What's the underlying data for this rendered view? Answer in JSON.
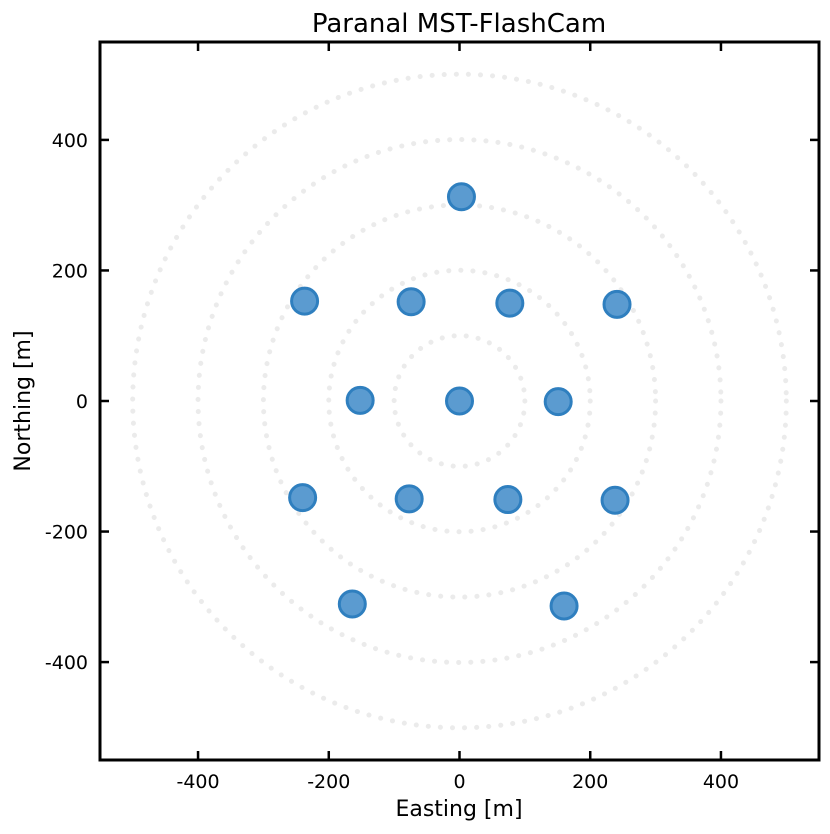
{
  "chart_data": {
    "type": "scatter",
    "title": "Paranal MST-FlashCam",
    "xlabel": "Easting [m]",
    "ylabel": "Northing [m]",
    "xlim": [
      -550,
      550
    ],
    "ylim": [
      -550,
      550
    ],
    "xticks": [
      -400,
      -200,
      0,
      200,
      400
    ],
    "yticks": [
      -400,
      -200,
      0,
      200,
      400
    ],
    "xtick_labels": [
      "-400",
      "-200",
      "0",
      "200",
      "400"
    ],
    "ytick_labels": [
      "-400",
      "-200",
      "0",
      "200",
      "400"
    ],
    "grid": false,
    "reference_circles_radii": [
      100,
      200,
      300,
      400,
      500
    ],
    "colors": {
      "marker_fill": "#5b9bd0",
      "marker_edge": "#2f7fbf",
      "circles": "#ebebeb"
    },
    "points": [
      {
        "x": 3,
        "y": 313
      },
      {
        "x": -237,
        "y": 153
      },
      {
        "x": -74,
        "y": 152
      },
      {
        "x": 77,
        "y": 150
      },
      {
        "x": 241,
        "y": 148
      },
      {
        "x": -152,
        "y": 1
      },
      {
        "x": 0,
        "y": 0
      },
      {
        "x": 151,
        "y": -1
      },
      {
        "x": -240,
        "y": -148
      },
      {
        "x": -77,
        "y": -150
      },
      {
        "x": 74,
        "y": -151
      },
      {
        "x": 238,
        "y": -152
      },
      {
        "x": -164,
        "y": -311
      },
      {
        "x": 160,
        "y": -314
      }
    ]
  }
}
